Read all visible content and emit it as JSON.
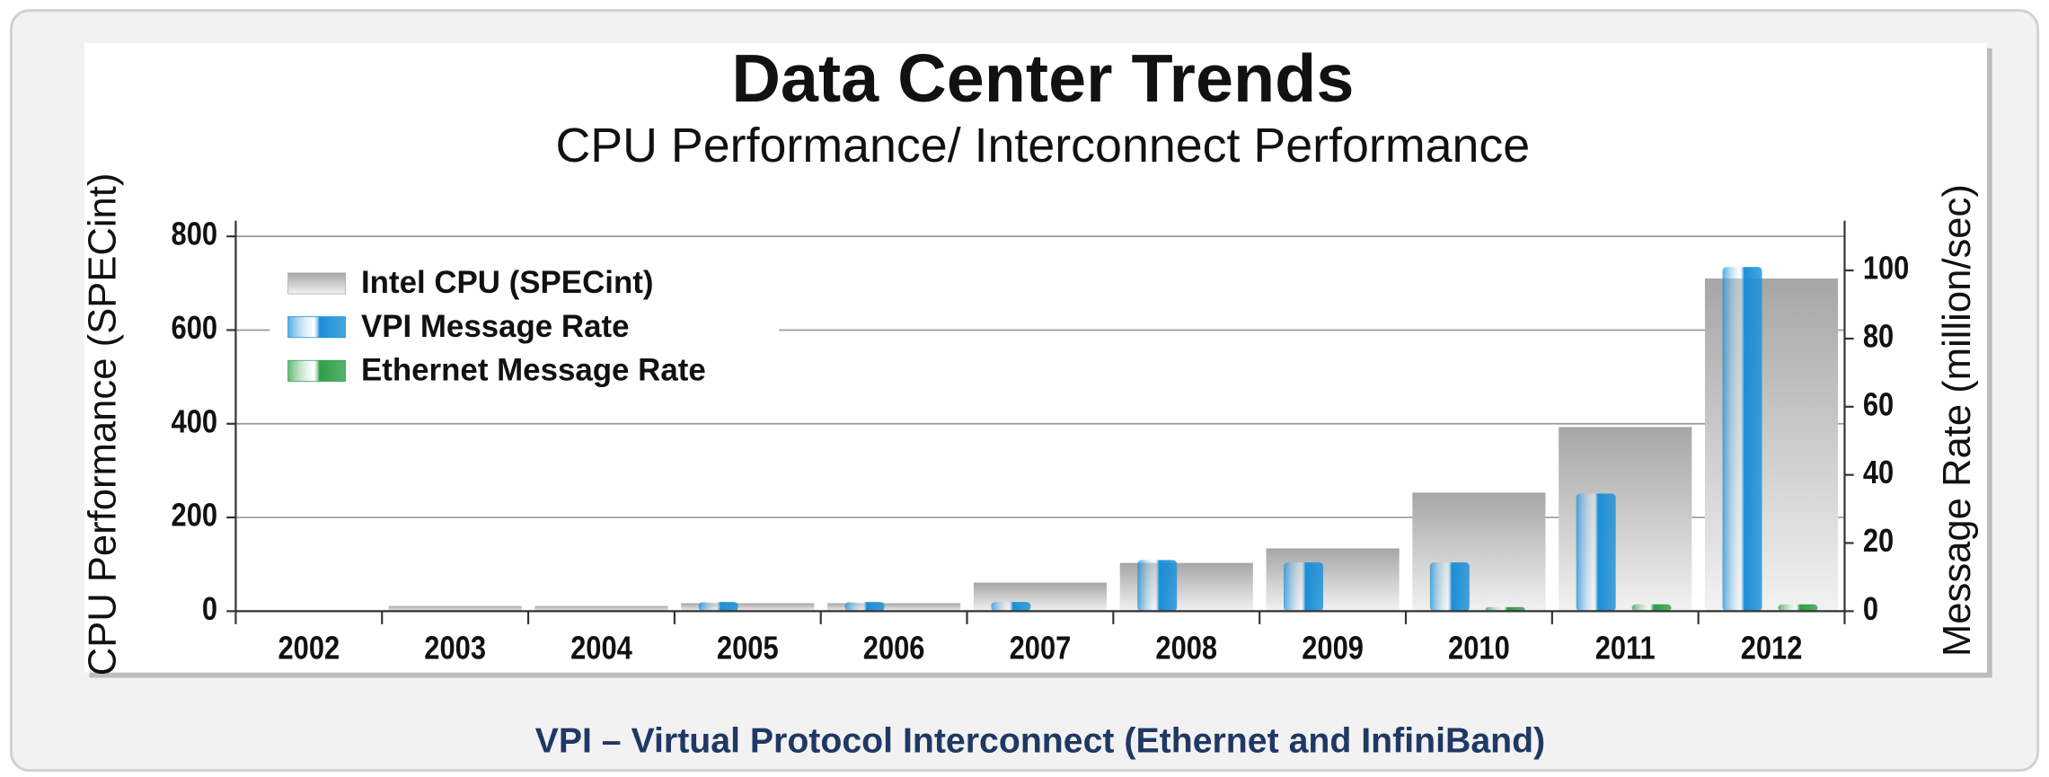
{
  "chart_data": {
    "type": "bar",
    "title": "Data Center Trends",
    "subtitle": "CPU Performance/ Interconnect Performance",
    "y_label": "CPU Performance (SPECint)",
    "y2_label": "Message Rate (million/sec)",
    "footnote": "VPI – Virtual Protocol Interconnect (Ethernet and InfiniBand)",
    "categories": [
      "2002",
      "2003",
      "2004",
      "2005",
      "2006",
      "2007",
      "2008",
      "2009",
      "2010",
      "2011",
      "2012"
    ],
    "series": [
      {
        "name": "Intel CPU (SPECint)",
        "color": "#a6a6a6",
        "values": [
          2,
          11,
          11,
          17,
          17,
          61,
          103,
          134,
          253,
          393,
          710
        ]
      },
      {
        "name": "VPI Message Rate",
        "color": "#1a8fd8",
        "axis": "y2",
        "values": [
          null,
          null,
          null,
          2.7,
          2.7,
          2.7,
          15,
          14.3,
          14.3,
          34.5,
          101
        ]
      },
      {
        "name": "Ethernet Message Rate",
        "color": "#2e9e48",
        "axis": "y2",
        "values": [
          null,
          null,
          null,
          null,
          null,
          null,
          null,
          null,
          1.2,
          2,
          2
        ]
      }
    ],
    "ylim": [
      0,
      800
    ],
    "yticks": [
      0,
      200,
      400,
      600,
      800
    ],
    "y2lim": [
      0,
      110
    ],
    "y2ticks": [
      0,
      20,
      40,
      60,
      80,
      100
    ],
    "grid": true,
    "legend": "upper left"
  }
}
